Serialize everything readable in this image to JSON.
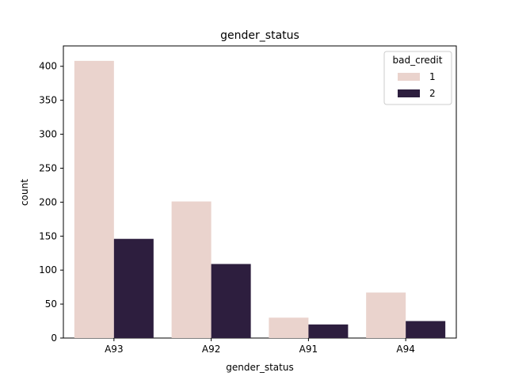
{
  "chart_data": {
    "type": "bar",
    "title": "gender_status",
    "xlabel": "gender_status",
    "ylabel": "count",
    "categories": [
      "A93",
      "A92",
      "A91",
      "A94"
    ],
    "series": [
      {
        "name": "1",
        "values": [
          408,
          201,
          30,
          67
        ]
      },
      {
        "name": "2",
        "values": [
          146,
          109,
          20,
          25
        ]
      }
    ],
    "ylim": [
      0,
      430
    ],
    "yticks": [
      0,
      50,
      100,
      150,
      200,
      250,
      300,
      350,
      400
    ],
    "grid": false,
    "legend": {
      "title": "bad_credit",
      "placement": "top-right",
      "entries": [
        "1",
        "2"
      ]
    },
    "colors": [
      "#ead3cd",
      "#2d1e3e"
    ]
  }
}
